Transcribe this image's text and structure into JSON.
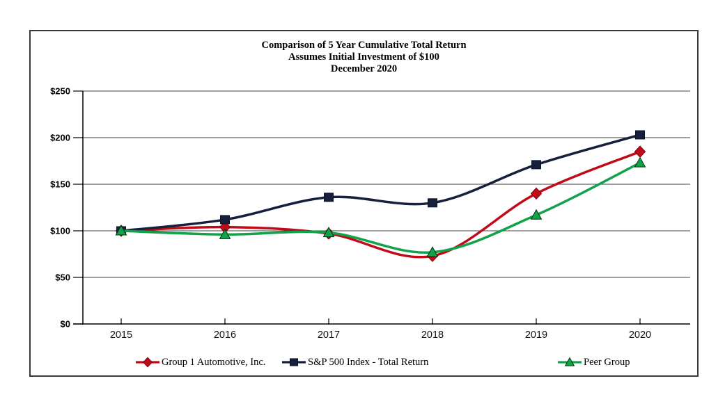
{
  "chart_data": {
    "type": "line",
    "title_lines": [
      "Comparison of 5 Year Cumulative Total Return",
      "Assumes Initial Investment of $100",
      "December 2020"
    ],
    "x": [
      2015,
      2016,
      2017,
      2018,
      2019,
      2020
    ],
    "x_tick_labels": [
      "2015",
      "2016",
      "2017",
      "2018",
      "2019",
      "2020"
    ],
    "y_ticks": [
      250,
      200,
      150,
      100,
      50,
      0
    ],
    "y_tick_labels": [
      "$250",
      "$200",
      "$150",
      "$100",
      "$50",
      "$0"
    ],
    "ylim": [
      0,
      250
    ],
    "grid": true,
    "legend_position": "bottom",
    "series": [
      {
        "name": "Group 1 Automotive, Inc.",
        "marker": "diamond",
        "color": "#C10A18",
        "values": [
          100,
          104,
          97,
          73,
          140,
          185
        ]
      },
      {
        "name": "S&P 500 Index - Total Return",
        "marker": "square",
        "color": "#16203C",
        "values": [
          100,
          112,
          136,
          130,
          171,
          203
        ]
      },
      {
        "name": "Peer Group",
        "marker": "triangle",
        "color": "#12A24A",
        "values": [
          100,
          96,
          98,
          77,
          117,
          173
        ]
      }
    ]
  }
}
